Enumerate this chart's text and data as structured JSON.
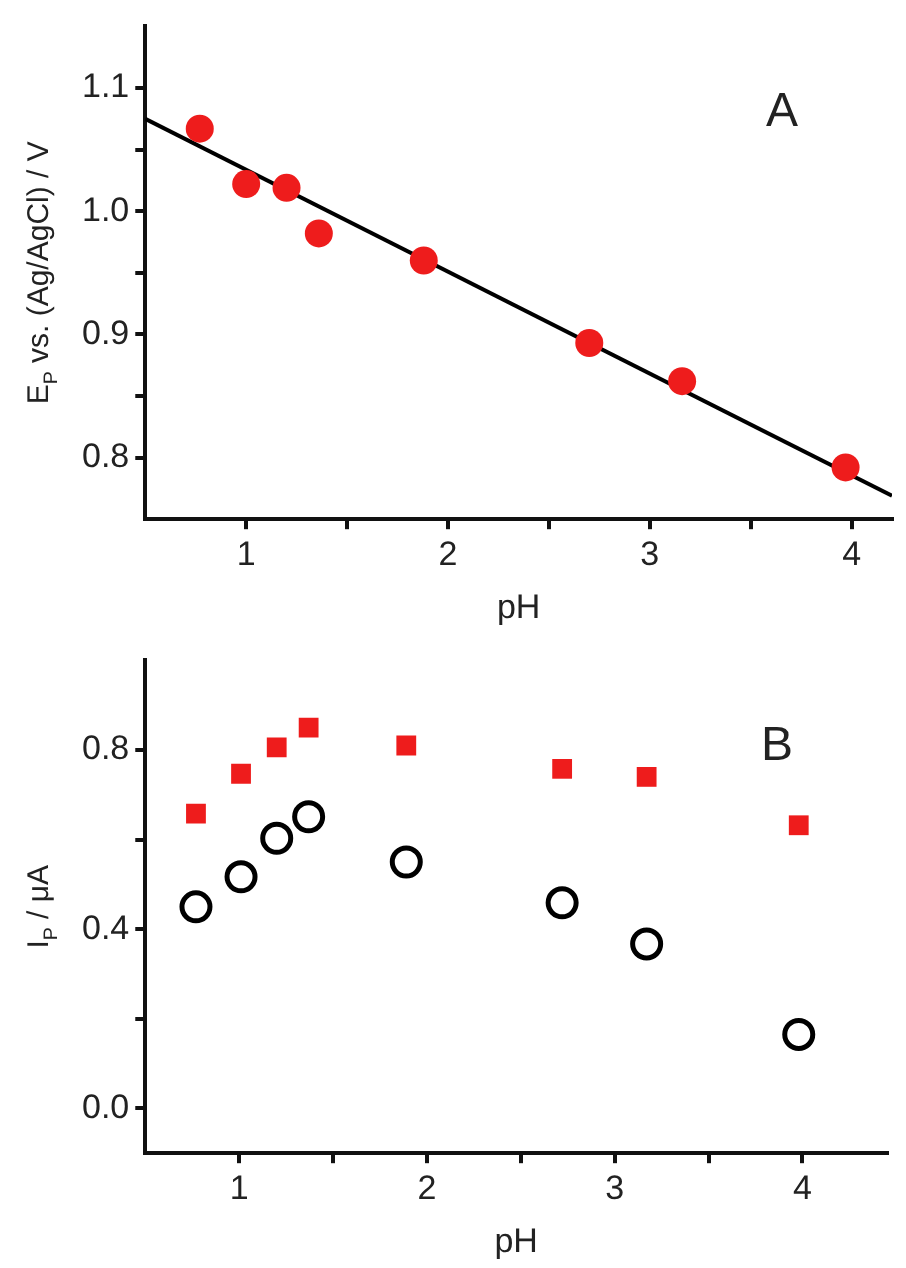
{
  "chart_data": [
    {
      "type": "scatter",
      "xlabel": "pH",
      "ylabel": "E$_{P}$ vs. (Ag/AgCl) / V",
      "xlim": [
        0.5,
        4.2
      ],
      "ylim": [
        0.75,
        1.15
      ],
      "xticks": [
        1,
        {
          "value": 1.5,
          "label": null
        },
        2,
        {
          "value": 2.5,
          "label": null
        },
        3,
        {
          "value": 3.5,
          "label": null
        },
        4
      ],
      "yticks": [
        0.8,
        {
          "value": 0.85,
          "label": null
        },
        0.9,
        {
          "value": 0.95,
          "label": null
        },
        {
          "value": 1.0,
          "label": "1.0"
        },
        {
          "value": 1.05,
          "label": null
        },
        1.1
      ],
      "x": [
        0.77,
        1.0,
        1.2,
        1.36,
        1.88,
        2.7,
        3.16,
        3.97
      ],
      "series": [
        {
          "color": "#ee1c1c",
          "marker": "circle",
          "values": [
            1.067,
            1.022,
            1.019,
            0.982,
            0.96,
            0.893,
            0.862,
            0.792
          ]
        },
        {
          "type": "line",
          "color": "#000000",
          "marker": "none",
          "x": [
            0.5,
            4.2
          ],
          "values": [
            1.075,
            0.769
          ]
        }
      ],
      "annotations": [
        "A"
      ]
    },
    {
      "type": "scatter",
      "xlabel": "pH",
      "ylabel": "I$_{P}$ / μA",
      "xlim": [
        0.5,
        4.45
      ],
      "ylim": [
        -0.1,
        1.0
      ],
      "xticks": [
        1,
        {
          "value": 1.5,
          "label": null
        },
        2,
        {
          "value": 2.5,
          "label": null
        },
        3,
        {
          "value": 3.5,
          "label": null
        },
        4
      ],
      "yticks": [
        {
          "value": 0.0,
          "label": "0.0"
        },
        {
          "value": 0.2,
          "label": null
        },
        0.4,
        {
          "value": 0.6,
          "label": null
        },
        0.8
      ],
      "x": [
        0.77,
        1.01,
        1.2,
        1.37,
        1.89,
        2.72,
        3.17,
        3.98
      ],
      "series": [
        {
          "color": "#ee1c1c",
          "marker": "square",
          "values": [
            0.658,
            0.747,
            0.806,
            0.85,
            0.81,
            0.758,
            0.74,
            0.632
          ]
        },
        {
          "color": "#000000",
          "marker": "circle",
          "values": [
            0.45,
            0.517,
            0.603,
            0.651,
            0.55,
            0.459,
            0.367,
            0.165
          ]
        }
      ],
      "annotations": [
        "B"
      ]
    }
  ]
}
